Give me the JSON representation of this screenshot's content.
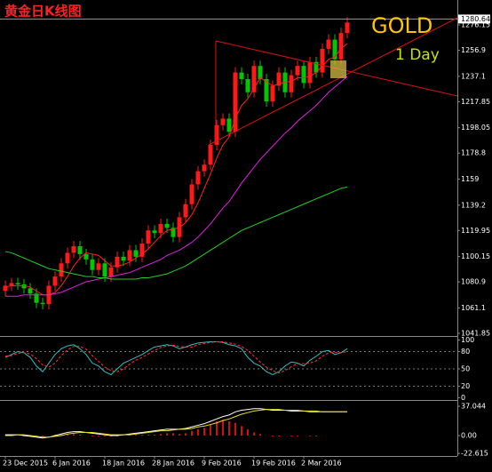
{
  "chart_data": [
    {
      "type": "candlestick",
      "title": "黄金日K线图",
      "annotations": [
        {
          "text": "GOLD",
          "color": "#ffc400"
        },
        {
          "text": "1 Day",
          "color": "#c8e000"
        }
      ],
      "categories": [
        "23 Dec 2015",
        null,
        null,
        null,
        null,
        null,
        null,
        null,
        "6 Jan 2016",
        null,
        null,
        null,
        null,
        null,
        null,
        null,
        "18 Jan 2016",
        null,
        null,
        null,
        null,
        null,
        null,
        null,
        "28 Jan 2016",
        null,
        null,
        null,
        null,
        null,
        null,
        null,
        "9 Feb 2016",
        null,
        null,
        null,
        null,
        null,
        null,
        null,
        "19 Feb 2016",
        null,
        null,
        null,
        null,
        null,
        null,
        null,
        "2 Mar 2016",
        null,
        null,
        null,
        null,
        null,
        null,
        null
      ],
      "open": [
        1074,
        1078,
        1080,
        1079,
        1076,
        1072,
        1065,
        1064,
        1078,
        1085,
        1095,
        1103,
        1108,
        1102,
        1098,
        1090,
        1095,
        1085,
        1092,
        1100,
        1097,
        1105,
        1100,
        1110,
        1120,
        1118,
        1125,
        1122,
        1115,
        1130,
        1140,
        1155,
        1165,
        1170,
        1185,
        1200,
        1205,
        1195,
        1240,
        1235,
        1225,
        1245,
        1235,
        1218,
        1230,
        1240,
        1225,
        1238,
        1245,
        1232,
        1248,
        1240,
        1258,
        1265,
        1250,
        1270
      ],
      "high": [
        1082,
        1084,
        1084,
        1083,
        1080,
        1076,
        1069,
        1082,
        1089,
        1099,
        1107,
        1112,
        1112,
        1106,
        1102,
        1099,
        1099,
        1096,
        1104,
        1104,
        1109,
        1109,
        1114,
        1124,
        1124,
        1129,
        1129,
        1126,
        1134,
        1144,
        1159,
        1169,
        1174,
        1189,
        1204,
        1209,
        1209,
        1244,
        1244,
        1239,
        1249,
        1249,
        1239,
        1234,
        1244,
        1244,
        1242,
        1249,
        1249,
        1252,
        1252,
        1262,
        1269,
        1269,
        1274,
        1282
      ],
      "low": [
        1070,
        1074,
        1075,
        1072,
        1068,
        1061,
        1060,
        1060,
        1074,
        1081,
        1091,
        1099,
        1098,
        1094,
        1086,
        1086,
        1081,
        1081,
        1088,
        1093,
        1093,
        1096,
        1096,
        1106,
        1114,
        1114,
        1118,
        1111,
        1111,
        1126,
        1136,
        1151,
        1161,
        1166,
        1181,
        1196,
        1191,
        1191,
        1231,
        1221,
        1221,
        1231,
        1214,
        1214,
        1226,
        1221,
        1221,
        1234,
        1228,
        1228,
        1236,
        1236,
        1254,
        1246,
        1246,
        1266
      ],
      "close": [
        1078,
        1080,
        1079,
        1076,
        1072,
        1065,
        1064,
        1078,
        1085,
        1095,
        1103,
        1108,
        1102,
        1098,
        1090,
        1095,
        1085,
        1092,
        1100,
        1097,
        1105,
        1100,
        1110,
        1120,
        1118,
        1125,
        1122,
        1115,
        1130,
        1140,
        1155,
        1165,
        1170,
        1185,
        1200,
        1205,
        1195,
        1240,
        1235,
        1225,
        1245,
        1235,
        1218,
        1230,
        1240,
        1225,
        1238,
        1245,
        1232,
        1248,
        1240,
        1258,
        1265,
        1250,
        1270,
        1278
      ],
      "up_color": "#ff1a1a",
      "down_color": "#00c800",
      "lines": [
        {
          "color": "#ff2020",
          "values": [
            1077,
            1078,
            1078,
            1078,
            1077,
            1074,
            1071,
            1071,
            1073,
            1078,
            1085,
            1093,
            1099,
            1103,
            1102,
            1101,
            1097,
            1093,
            1093,
            1094,
            1096,
            1099,
            1102,
            1106,
            1111,
            1116,
            1120,
            1121,
            1122,
            1126,
            1132,
            1141,
            1152,
            1163,
            1175,
            1185,
            1191,
            1205,
            1215,
            1220,
            1228,
            1236,
            1233,
            1230,
            1231,
            1233,
            1233,
            1236,
            1236,
            1237,
            1240,
            1245,
            1250,
            1252,
            1258,
            1262
          ]
        },
        {
          "color": "#e020e0",
          "values": [
            1070,
            1070,
            1070,
            1071,
            1071,
            1071,
            1071,
            1071,
            1072,
            1073,
            1075,
            1077,
            1079,
            1081,
            1082,
            1083,
            1084,
            1085,
            1086,
            1087,
            1088,
            1090,
            1092,
            1094,
            1096,
            1098,
            1101,
            1103,
            1105,
            1108,
            1111,
            1115,
            1120,
            1125,
            1131,
            1137,
            1142,
            1149,
            1156,
            1162,
            1168,
            1174,
            1179,
            1184,
            1189,
            1194,
            1198,
            1203,
            1207,
            1211,
            1215,
            1220,
            1225,
            1229,
            1233,
            1237
          ]
        },
        {
          "color": "#20d020",
          "values": [
            1104,
            1103,
            1101,
            1099,
            1097,
            1095,
            1093,
            1091,
            1090,
            1089,
            1088,
            1087,
            1086,
            1085,
            1085,
            1084,
            1084,
            1083,
            1083,
            1083,
            1083,
            1083,
            1084,
            1084,
            1085,
            1086,
            1087,
            1089,
            1091,
            1093,
            1096,
            1099,
            1102,
            1105,
            1108,
            1111,
            1114,
            1117,
            1120,
            1122,
            1124,
            1126,
            1128,
            1130,
            1132,
            1134,
            1136,
            1138,
            1140,
            1142,
            1144,
            1146,
            1148,
            1150,
            1152,
            1153
          ]
        }
      ],
      "last_price": 1280.64,
      "ylim": [
        1039.8,
        1295.1
      ],
      "yticks": [
        1276.15,
        1256.9,
        1237.1,
        1217.85,
        1198.05,
        1178.8,
        1159,
        1139.2,
        1119.95,
        1100.15,
        1080.9,
        1061.1,
        1041.85
      ]
    },
    {
      "type": "line",
      "series": [
        {
          "color": "#30c0c0",
          "dashed": false,
          "values": [
            70,
            75,
            80,
            78,
            70,
            55,
            45,
            60,
            75,
            85,
            90,
            92,
            85,
            75,
            60,
            55,
            45,
            40,
            50,
            60,
            65,
            70,
            75,
            82,
            88,
            90,
            92,
            90,
            85,
            88,
            92,
            95,
            96,
            97,
            97,
            96,
            92,
            90,
            85,
            70,
            60,
            55,
            45,
            40,
            45,
            55,
            62,
            60,
            55,
            65,
            72,
            80,
            82,
            75,
            78,
            85
          ]
        },
        {
          "color": "#ff3030",
          "dashed": true,
          "values": [
            72,
            73,
            77,
            78,
            76,
            68,
            57,
            53,
            60,
            73,
            83,
            89,
            89,
            84,
            73,
            63,
            53,
            47,
            45,
            50,
            58,
            65,
            70,
            76,
            82,
            87,
            90,
            91,
            89,
            88,
            88,
            92,
            94,
            96,
            97,
            97,
            95,
            93,
            89,
            82,
            72,
            62,
            53,
            47,
            43,
            47,
            54,
            59,
            59,
            60,
            64,
            72,
            78,
            79,
            78,
            80
          ]
        }
      ],
      "levels": [
        80,
        50,
        20
      ],
      "ylim": [
        -4,
        104
      ],
      "yticks": [
        100,
        80,
        50,
        20,
        0
      ]
    },
    {
      "type": "macd",
      "histogram": {
        "color": "#d01010",
        "values": [
          1,
          1,
          0,
          -1,
          -1,
          -1,
          -1,
          0,
          1,
          2,
          2,
          2,
          1,
          0,
          -1,
          -1,
          -1,
          -1,
          -1,
          0,
          1,
          1,
          1,
          1,
          1,
          2,
          3,
          3,
          2,
          3,
          6,
          8,
          10,
          14,
          18,
          20,
          18,
          16,
          12,
          8,
          4,
          2,
          0,
          -1,
          -1,
          0,
          -1,
          -1,
          0,
          -1,
          -1,
          0,
          0,
          0,
          0,
          0
        ]
      },
      "series": [
        {
          "color": "#ffffff",
          "values": [
            1,
            1,
            1,
            0,
            -1,
            -2,
            -3,
            -2,
            0,
            2,
            4,
            5,
            5,
            4,
            3,
            2,
            1,
            0,
            0,
            1,
            2,
            3,
            4,
            5,
            6,
            7,
            8,
            8,
            8,
            9,
            11,
            13,
            15,
            18,
            21,
            24,
            26,
            30,
            32,
            33,
            34,
            34,
            33,
            32,
            32,
            32,
            31,
            31,
            31,
            30,
            30,
            30,
            30,
            30,
            30,
            30
          ]
        },
        {
          "color": "#e8e020",
          "values": [
            0,
            0,
            1,
            1,
            0,
            -1,
            -2,
            -2,
            -1,
            0,
            2,
            3,
            4,
            4,
            4,
            3,
            2,
            1,
            1,
            1,
            1,
            2,
            3,
            4,
            5,
            6,
            6,
            7,
            8,
            8,
            9,
            11,
            12,
            14,
            16,
            19,
            21,
            24,
            27,
            29,
            31,
            32,
            33,
            33,
            33,
            32,
            32,
            32,
            31,
            31,
            31,
            30,
            30,
            30,
            30,
            30
          ]
        }
      ],
      "ylim": [
        -25.8,
        42.7
      ],
      "yticks": [
        37.044,
        {
          "value": 0,
          "label": "0.00"
        },
        -22.615
      ]
    }
  ]
}
